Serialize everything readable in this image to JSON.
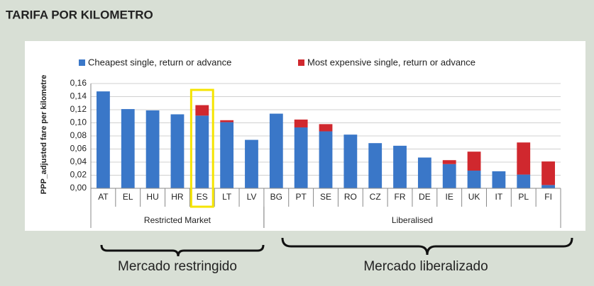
{
  "title": "TARIFA POR KILOMETRO",
  "chart_data": {
    "type": "stacked_bar",
    "y_label": "PPP_adjusted fare per kilometre",
    "categories": [
      "AT",
      "EL",
      "HU",
      "HR",
      "ES",
      "LT",
      "LV",
      "BG",
      "PT",
      "SE",
      "RO",
      "CZ",
      "FR",
      "DE",
      "IE",
      "UK",
      "IT",
      "PL",
      "FI"
    ],
    "series": [
      {
        "name": "Cheapest single, return or advance",
        "color": "#3a77c8",
        "values": [
          0.148,
          0.121,
          0.119,
          0.113,
          0.111,
          0.101,
          0.074,
          0.114,
          0.093,
          0.087,
          0.082,
          0.069,
          0.065,
          0.047,
          0.037,
          0.027,
          0.026,
          0.021,
          0.005
        ]
      },
      {
        "name": "Most expensive single, return or advance",
        "color": "#d0282e",
        "values": [
          0,
          0,
          0,
          0,
          0.016,
          0.003,
          0,
          0,
          0.012,
          0.011,
          0,
          0,
          0,
          0,
          0.006,
          0.029,
          0,
          0.049,
          0.036
        ]
      }
    ],
    "groups": [
      {
        "label": "Restricted Market",
        "count": 7
      },
      {
        "label": "Liberalised",
        "count": 12
      }
    ],
    "ylim": [
      0,
      0.16
    ],
    "yticks": [
      {
        "value": 0,
        "label": "0,00"
      },
      {
        "value": 0.02,
        "label": "0,02"
      },
      {
        "value": 0.04,
        "label": "0,04"
      },
      {
        "value": 0.06,
        "label": "0,06"
      },
      {
        "value": 0.08,
        "label": "0,08"
      },
      {
        "value": 0.1,
        "label": "0,10"
      },
      {
        "value": 0.12,
        "label": "0,12"
      },
      {
        "value": 0.14,
        "label": "0,14"
      },
      {
        "value": 0.16,
        "label": "0,16"
      }
    ],
    "grid": true
  },
  "annotations": [
    "Mercado restringido",
    "Mercado liberalizado"
  ]
}
